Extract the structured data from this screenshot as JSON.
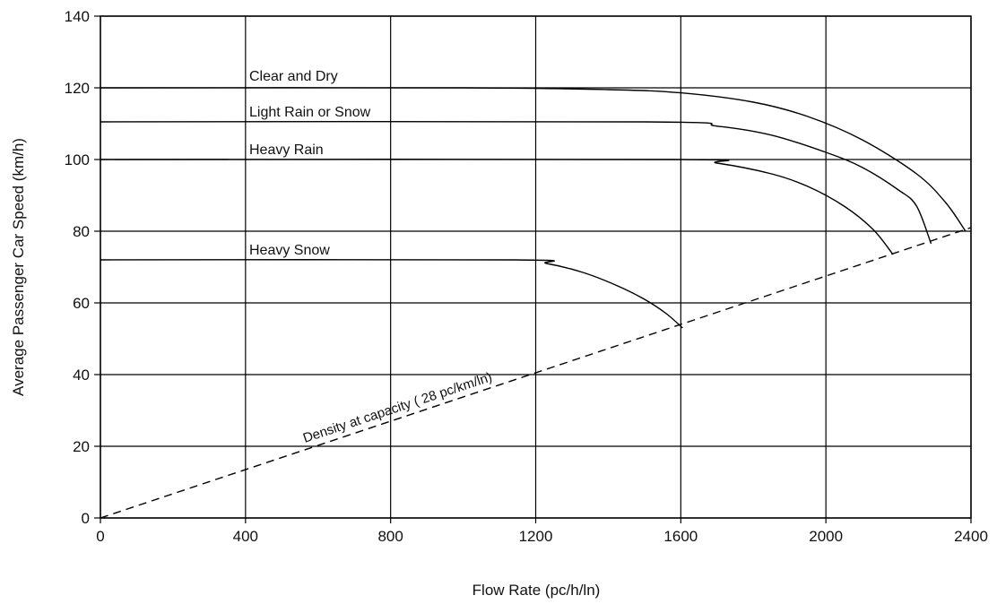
{
  "chart_data": {
    "type": "line",
    "xlabel": "Flow Rate (pc/h/ln)",
    "ylabel": "Average Passenger Car Speed (km/h)",
    "xlim": [
      0,
      2400
    ],
    "ylim": [
      0,
      140
    ],
    "xticks": [
      "0",
      "400",
      "800",
      "1200",
      "1600",
      "2000",
      "2400"
    ],
    "yticks": [
      "0",
      "20",
      "40",
      "60",
      "80",
      "100",
      "120",
      "140"
    ],
    "grid": true,
    "series": [
      {
        "name": "Clear and Dry",
        "style": "solid",
        "x": [
          0,
          1000,
          1400,
          1600,
          1800,
          1950,
          2100,
          2250,
          2330,
          2385
        ],
        "y": [
          120,
          120,
          119.5,
          118.6,
          116,
          112,
          105.5,
          96,
          88,
          80
        ]
      },
      {
        "name": "Light Rain or Snow",
        "style": "solid",
        "x": [
          0,
          1500,
          1700,
          1850,
          2000,
          2100,
          2200,
          2250,
          2290
        ],
        "y": [
          110.5,
          110.5,
          109.3,
          106.8,
          102,
          97.8,
          91.5,
          87,
          76.5
        ]
      },
      {
        "name": "Heavy Rain",
        "style": "solid",
        "x": [
          0,
          1580,
          1700,
          1850,
          1950,
          2050,
          2130,
          2185
        ],
        "y": [
          100,
          100,
          99,
          96,
          92.5,
          87,
          80.5,
          73.5
        ]
      },
      {
        "name": "Heavy Snow",
        "style": "solid",
        "x": [
          0,
          1140,
          1230,
          1330,
          1420,
          1500,
          1560,
          1605
        ],
        "y": [
          72,
          72,
          71,
          68.5,
          65,
          61,
          57,
          53
        ]
      },
      {
        "name": "Density at capacity ( 28 pc/km/ln)",
        "style": "dashed",
        "x": [
          0,
          2400
        ],
        "y": [
          0,
          81
        ]
      }
    ],
    "labels": {
      "clear_dry": "Clear and Dry",
      "light_rain": "Light Rain or Snow",
      "heavy_rain": "Heavy Rain",
      "heavy_snow": "Heavy Snow",
      "density": "Density at capacity ( 28 pc/km/ln)"
    }
  }
}
